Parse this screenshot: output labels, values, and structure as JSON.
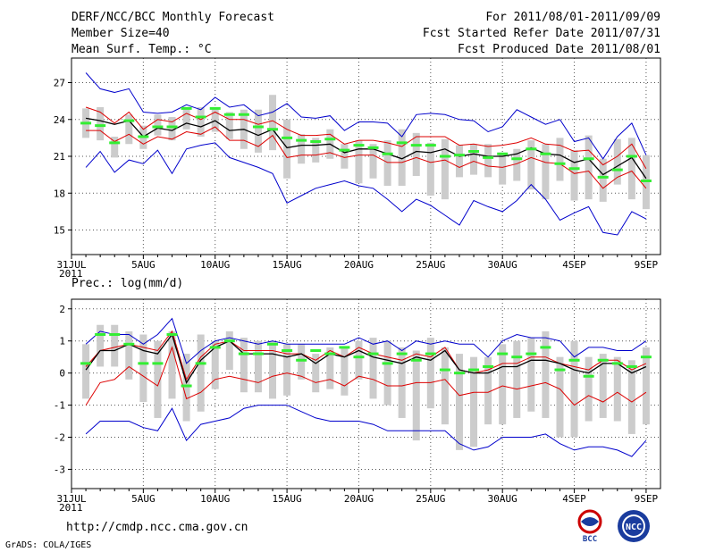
{
  "header": {
    "title": "DERF/NCC/BCC Monthly Forecast",
    "member": "Member Size=40",
    "variable": "Mean Surf. Temp.: °C",
    "period": "For 2011/08/01-2011/09/09",
    "refer": "Fcst Started Refer Date 2011/07/31",
    "produced": "Fcst Produced Date 2011/08/01"
  },
  "footer": {
    "url": "http://cmdp.ncc.cma.gov.cn",
    "grads": "GrADS: COLA/IGES",
    "logo1_text": "BCC",
    "logo2_text": "NCC"
  },
  "colors": {
    "box": "#cccccc",
    "green": "#33ee33",
    "mean": "#000000",
    "inner": "#dd0000",
    "outer": "#0000cc",
    "grid": "#555555"
  },
  "chart_data": [
    {
      "type": "box",
      "title": "Mean Surf. Temp.: °C",
      "x_tick_labels": [
        "31JUL\n2011",
        "5AUG",
        "10AUG",
        "15AUG",
        "20AUG",
        "25AUG",
        "30AUG",
        "4SEP",
        "9SEP"
      ],
      "x_tick_days": [
        0,
        5,
        10,
        15,
        20,
        25,
        30,
        35,
        40
      ],
      "ylim": [
        13,
        29
      ],
      "y_ticks": [
        15,
        18,
        21,
        24,
        27
      ],
      "days": [
        1,
        2,
        3,
        4,
        5,
        6,
        7,
        8,
        9,
        10,
        11,
        12,
        13,
        14,
        15,
        16,
        17,
        18,
        19,
        20,
        21,
        22,
        23,
        24,
        25,
        26,
        27,
        28,
        29,
        30,
        31,
        32,
        33,
        34,
        35,
        36,
        37,
        38,
        39,
        40
      ],
      "box_low": [
        22.5,
        22.3,
        20.9,
        22.0,
        21.6,
        22.7,
        22.3,
        23.2,
        22.6,
        23.0,
        22.4,
        21.6,
        21.3,
        21.5,
        19.2,
        20.4,
        20.5,
        20.8,
        20.0,
        18.8,
        19.2,
        18.6,
        18.6,
        19.4,
        17.8,
        17.5,
        19.3,
        19.5,
        19.3,
        18.7,
        19.0,
        18.3,
        17.5,
        19.0,
        17.4,
        17.5,
        17.3,
        18.7,
        17.5,
        16.7
      ],
      "box_high": [
        24.9,
        25.0,
        22.6,
        24.4,
        23.5,
        24.4,
        24.2,
        25.0,
        25.0,
        25.0,
        24.6,
        24.8,
        24.8,
        26.0,
        24.0,
        22.8,
        22.5,
        23.2,
        22.0,
        22.3,
        22.0,
        22.3,
        23.2,
        22.9,
        22.1,
        22.4,
        21.9,
        22.0,
        22.0,
        21.3,
        21.6,
        22.3,
        22.0,
        22.5,
        21.5,
        22.7,
        20.8,
        22.4,
        22.5,
        21.1
      ],
      "green": [
        23.7,
        23.5,
        22.1,
        23.9,
        22.6,
        23.4,
        23.4,
        24.9,
        24.2,
        24.9,
        24.4,
        24.4,
        23.4,
        23.2,
        22.5,
        22.3,
        22.2,
        22.4,
        21.5,
        21.9,
        21.7,
        21.2,
        22.1,
        21.9,
        21.9,
        21.0,
        21.1,
        21.4,
        20.9,
        21.2,
        20.8,
        21.6,
        21.2,
        20.4,
        20.0,
        20.8,
        19.3,
        19.9,
        21.0,
        19.0
      ],
      "series": [
        {
          "name": "outer_high",
          "color": "#0000cc",
          "values": [
            27.8,
            26.5,
            26.2,
            26.5,
            24.6,
            24.5,
            24.6,
            25.2,
            24.8,
            25.8,
            25.0,
            25.2,
            24.3,
            24.6,
            25.3,
            24.2,
            24.1,
            24.3,
            23.1,
            23.8,
            23.8,
            23.7,
            22.6,
            24.4,
            24.5,
            24.4,
            24.0,
            23.9,
            23.0,
            23.4,
            24.8,
            24.2,
            23.6,
            24.0,
            22.2,
            22.5,
            20.8,
            22.6,
            23.7,
            21.1
          ]
        },
        {
          "name": "inner_high",
          "color": "#dd0000",
          "values": [
            25.0,
            24.6,
            23.7,
            24.6,
            23.2,
            24.0,
            23.8,
            24.5,
            24.0,
            24.6,
            24.0,
            24.0,
            23.6,
            23.9,
            23.2,
            22.7,
            22.7,
            22.8,
            22.0,
            22.3,
            22.3,
            22.1,
            21.8,
            22.6,
            22.6,
            22.6,
            21.9,
            22.0,
            21.8,
            21.9,
            22.1,
            22.5,
            22.0,
            21.9,
            21.4,
            21.5,
            20.3,
            21.0,
            22.0,
            20.0
          ]
        },
        {
          "name": "mean",
          "color": "#000000",
          "values": [
            24.1,
            23.9,
            23.6,
            23.9,
            22.6,
            23.3,
            23.1,
            23.7,
            23.4,
            23.9,
            23.1,
            23.2,
            22.7,
            23.2,
            21.7,
            21.9,
            21.9,
            22.0,
            21.3,
            21.6,
            21.6,
            21.2,
            20.8,
            21.4,
            21.3,
            21.6,
            21.0,
            21.2,
            21.0,
            21.0,
            21.2,
            21.7,
            21.2,
            21.1,
            20.5,
            20.8,
            19.5,
            20.2,
            20.9,
            19.2
          ]
        },
        {
          "name": "inner_low",
          "color": "#dd0000",
          "values": [
            23.1,
            23.1,
            22.2,
            22.8,
            22.0,
            22.6,
            22.4,
            23.0,
            22.8,
            23.4,
            22.3,
            22.3,
            21.8,
            22.7,
            20.9,
            21.1,
            21.1,
            21.3,
            20.9,
            21.1,
            21.1,
            20.5,
            20.5,
            20.9,
            20.5,
            20.7,
            20.1,
            20.6,
            20.2,
            20.1,
            20.4,
            20.9,
            20.5,
            20.4,
            19.6,
            19.8,
            18.4,
            19.3,
            19.8,
            18.4
          ]
        },
        {
          "name": "outer_low",
          "color": "#0000cc",
          "values": [
            20.1,
            21.4,
            19.7,
            20.7,
            20.4,
            21.5,
            19.6,
            21.6,
            21.9,
            22.1,
            20.9,
            20.5,
            20.1,
            19.6,
            17.2,
            17.8,
            18.4,
            18.7,
            19.0,
            18.6,
            18.4,
            17.5,
            16.5,
            17.5,
            17.0,
            16.2,
            15.4,
            17.4,
            16.9,
            16.5,
            17.4,
            18.7,
            17.5,
            15.8,
            16.4,
            16.9,
            14.8,
            14.6,
            16.5,
            15.9
          ]
        }
      ]
    },
    {
      "type": "box",
      "title": "Prec.: log(mm/d)",
      "x_tick_labels": [
        "31JUL\n2011",
        "5AUG",
        "10AUG",
        "15AUG",
        "20AUG",
        "25AUG",
        "30AUG",
        "4SEP",
        "9SEP"
      ],
      "x_tick_days": [
        0,
        5,
        10,
        15,
        20,
        25,
        30,
        35,
        40
      ],
      "ylim": [
        -3.6,
        2.3
      ],
      "y_ticks": [
        -3,
        -2,
        -1,
        0,
        1,
        2
      ],
      "days": [
        1,
        2,
        3,
        4,
        5,
        6,
        7,
        8,
        9,
        10,
        11,
        12,
        13,
        14,
        15,
        16,
        17,
        18,
        19,
        20,
        21,
        22,
        23,
        24,
        25,
        26,
        27,
        28,
        29,
        30,
        31,
        32,
        33,
        34,
        35,
        36,
        37,
        38,
        39,
        40
      ],
      "box_low": [
        -0.8,
        0.2,
        0.2,
        -0.2,
        -0.9,
        -1.4,
        -0.8,
        -1.5,
        -1.2,
        -0.5,
        0.1,
        -0.6,
        -0.6,
        -0.8,
        -0.7,
        -0.2,
        -0.6,
        -0.5,
        -0.7,
        -0.2,
        -0.8,
        -1.0,
        -1.4,
        -2.1,
        -1.1,
        -1.6,
        -2.4,
        -2.3,
        -1.6,
        -1.6,
        -1.4,
        -1.2,
        -1.4,
        -2.0,
        -2.0,
        -1.5,
        -1.4,
        -1.5,
        -1.9,
        -1.6
      ],
      "box_high": [
        0.9,
        1.5,
        1.5,
        1.3,
        1.2,
        1.0,
        1.3,
        0.6,
        1.2,
        1.0,
        1.3,
        1.1,
        1.0,
        1.0,
        0.9,
        0.9,
        0.6,
        0.8,
        0.8,
        1.0,
        1.1,
        1.0,
        0.8,
        0.7,
        1.1,
        0.8,
        0.6,
        0.5,
        0.5,
        0.9,
        1.0,
        1.1,
        1.3,
        0.5,
        1.0,
        0.5,
        0.6,
        0.5,
        0.4,
        0.8
      ],
      "green": [
        0.3,
        1.2,
        1.2,
        0.9,
        0.3,
        0.3,
        1.2,
        -0.4,
        0.3,
        0.8,
        1.0,
        0.6,
        0.6,
        0.9,
        0.7,
        0.4,
        0.7,
        0.6,
        0.8,
        0.5,
        0.6,
        0.3,
        0.6,
        0.4,
        0.6,
        0.1,
        0.0,
        0.1,
        0.2,
        0.6,
        0.5,
        0.6,
        0.8,
        0.1,
        0.4,
        -0.1,
        0.4,
        0.3,
        0.2,
        0.5
      ],
      "series": [
        {
          "name": "outer_high",
          "color": "#0000cc",
          "values": [
            0.9,
            1.3,
            1.2,
            1.2,
            0.9,
            1.2,
            1.7,
            0.3,
            0.7,
            1.0,
            1.1,
            1.0,
            0.9,
            1.0,
            0.9,
            0.9,
            0.9,
            0.9,
            0.9,
            1.1,
            0.9,
            1.0,
            0.7,
            1.0,
            0.9,
            1.0,
            0.9,
            0.9,
            0.5,
            1.0,
            1.2,
            1.1,
            1.1,
            1.0,
            0.5,
            0.8,
            0.8,
            0.7,
            0.7,
            1.0
          ]
        },
        {
          "name": "inner_high",
          "color": "#dd0000",
          "values": [
            0.2,
            0.7,
            0.8,
            0.9,
            0.8,
            0.7,
            1.3,
            -0.2,
            0.5,
            0.9,
            1.0,
            0.7,
            0.7,
            0.7,
            0.6,
            0.6,
            0.4,
            0.7,
            0.5,
            0.8,
            0.6,
            0.5,
            0.4,
            0.6,
            0.5,
            0.8,
            0.1,
            0.0,
            0.1,
            0.3,
            0.3,
            0.5,
            0.5,
            0.3,
            0.2,
            0.1,
            0.4,
            0.4,
            0.1,
            0.3
          ]
        },
        {
          "name": "mean",
          "color": "#000000",
          "values": [
            0.1,
            0.7,
            0.7,
            0.9,
            0.7,
            0.6,
            1.2,
            -0.3,
            0.4,
            0.8,
            1.0,
            0.6,
            0.6,
            0.6,
            0.5,
            0.6,
            0.3,
            0.6,
            0.5,
            0.7,
            0.5,
            0.4,
            0.3,
            0.5,
            0.4,
            0.7,
            0.1,
            0.0,
            0.0,
            0.2,
            0.2,
            0.4,
            0.4,
            0.3,
            0.1,
            0.0,
            0.3,
            0.3,
            0.0,
            0.2
          ]
        },
        {
          "name": "inner_low",
          "color": "#dd0000",
          "values": [
            -1.0,
            -0.3,
            -0.2,
            0.2,
            -0.1,
            -0.4,
            0.8,
            -0.8,
            -0.6,
            -0.2,
            -0.1,
            -0.2,
            -0.3,
            -0.1,
            0.0,
            -0.1,
            -0.3,
            -0.2,
            -0.4,
            -0.1,
            -0.2,
            -0.4,
            -0.4,
            -0.3,
            -0.3,
            -0.2,
            -0.7,
            -0.6,
            -0.6,
            -0.4,
            -0.5,
            -0.4,
            -0.3,
            -0.5,
            -1.0,
            -0.7,
            -0.9,
            -0.6,
            -0.9,
            -0.6
          ]
        },
        {
          "name": "outer_low",
          "color": "#0000cc",
          "values": [
            -1.9,
            -1.5,
            -1.5,
            -1.5,
            -1.7,
            -1.8,
            -1.1,
            -2.1,
            -1.6,
            -1.5,
            -1.4,
            -1.1,
            -1.0,
            -1.0,
            -1.0,
            -1.2,
            -1.4,
            -1.5,
            -1.5,
            -1.5,
            -1.6,
            -1.8,
            -1.8,
            -1.8,
            -1.8,
            -1.8,
            -2.2,
            -2.4,
            -2.3,
            -2.0,
            -2.0,
            -2.0,
            -1.9,
            -2.2,
            -2.4,
            -2.3,
            -2.3,
            -2.4,
            -2.6,
            -2.1
          ]
        }
      ]
    }
  ]
}
